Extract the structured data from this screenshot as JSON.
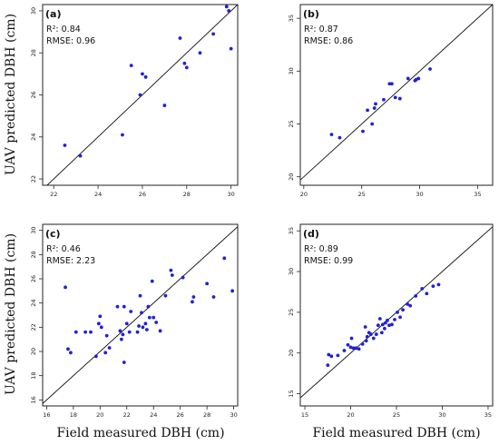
{
  "chart_data": [
    {
      "type": "scatter",
      "panel_label": "(a)",
      "stats": [
        "R²: 0.84",
        "RMSE: 0.96"
      ],
      "xlabel": "",
      "ylabel": "UAV predicted DBH (cm)",
      "xlim": [
        21.5,
        30.3
      ],
      "ylim": [
        21.7,
        30.3
      ],
      "xticks": [
        22,
        24,
        26,
        28,
        30
      ],
      "yticks": [
        22,
        24,
        26,
        28,
        30
      ],
      "grid": false,
      "reference_line": "1:1",
      "points": [
        [
          22.5,
          23.6
        ],
        [
          23.2,
          23.1
        ],
        [
          25.1,
          24.1
        ],
        [
          25.5,
          27.4
        ],
        [
          25.9,
          26.0
        ],
        [
          26.0,
          27.0
        ],
        [
          26.15,
          26.85
        ],
        [
          27.0,
          25.5
        ],
        [
          27.7,
          28.7
        ],
        [
          27.9,
          27.5
        ],
        [
          28.0,
          27.3
        ],
        [
          28.6,
          28.0
        ],
        [
          29.2,
          28.9
        ],
        [
          29.8,
          30.2
        ],
        [
          29.9,
          30.0
        ],
        [
          30.0,
          28.2
        ]
      ]
    },
    {
      "type": "scatter",
      "panel_label": "(b)",
      "stats": [
        "R²: 0.87",
        "RMSE: 0.86"
      ],
      "xlabel": "",
      "ylabel": "",
      "xlim": [
        19.7,
        36.3
      ],
      "ylim": [
        19.2,
        36.3
      ],
      "xticks": [
        20,
        25,
        30,
        35
      ],
      "yticks": [
        20,
        25,
        30,
        35
      ],
      "grid": false,
      "reference_line": "1:1",
      "points": [
        [
          22.4,
          24.0
        ],
        [
          23.1,
          23.7
        ],
        [
          25.1,
          24.3
        ],
        [
          25.5,
          26.3
        ],
        [
          25.9,
          25.0
        ],
        [
          26.1,
          26.5
        ],
        [
          26.2,
          26.9
        ],
        [
          26.9,
          27.3
        ],
        [
          27.4,
          28.8
        ],
        [
          27.6,
          28.8
        ],
        [
          27.9,
          27.5
        ],
        [
          28.3,
          27.4
        ],
        [
          29.0,
          29.3
        ],
        [
          29.6,
          29.1
        ],
        [
          29.7,
          29.2
        ],
        [
          29.9,
          29.3
        ],
        [
          30.9,
          30.2
        ]
      ]
    },
    {
      "type": "scatter",
      "panel_label": "(c)",
      "stats": [
        "R²: 0.46",
        "RMSE: 2.23"
      ],
      "xlabel": "Field measured DBH (cm)",
      "ylabel": "UAV predicted DBH (cm)",
      "xlim": [
        15.7,
        30.3
      ],
      "ylim": [
        15.5,
        30.5
      ],
      "xticks": [
        16,
        18,
        20,
        22,
        24,
        26,
        28,
        30
      ],
      "yticks": [
        16,
        18,
        20,
        22,
        24,
        26,
        28,
        30
      ],
      "grid": false,
      "reference_line": "1:1",
      "points": [
        [
          17.4,
          25.3
        ],
        [
          17.6,
          20.2
        ],
        [
          17.8,
          19.9
        ],
        [
          18.2,
          21.6
        ],
        [
          18.9,
          21.6
        ],
        [
          19.3,
          21.6
        ],
        [
          19.7,
          19.6
        ],
        [
          19.9,
          22.3
        ],
        [
          20.0,
          22.9
        ],
        [
          20.1,
          22.0
        ],
        [
          20.4,
          19.9
        ],
        [
          20.5,
          21.3
        ],
        [
          20.7,
          20.3
        ],
        [
          21.3,
          23.7
        ],
        [
          21.5,
          21.7
        ],
        [
          21.6,
          21.0
        ],
        [
          21.7,
          21.4
        ],
        [
          21.8,
          19.1
        ],
        [
          21.8,
          23.7
        ],
        [
          22.0,
          22.3
        ],
        [
          22.2,
          21.6
        ],
        [
          22.3,
          23.3
        ],
        [
          22.8,
          21.6
        ],
        [
          22.9,
          22.1
        ],
        [
          23.0,
          24.6
        ],
        [
          23.1,
          23.2
        ],
        [
          23.2,
          22.0
        ],
        [
          23.4,
          22.3
        ],
        [
          23.5,
          21.8
        ],
        [
          23.6,
          23.7
        ],
        [
          23.7,
          22.8
        ],
        [
          23.9,
          25.8
        ],
        [
          24.0,
          22.8
        ],
        [
          24.2,
          22.4
        ],
        [
          24.5,
          21.7
        ],
        [
          24.9,
          24.6
        ],
        [
          25.3,
          26.7
        ],
        [
          25.4,
          26.3
        ],
        [
          26.2,
          26.1
        ],
        [
          26.9,
          24.1
        ],
        [
          27.0,
          24.5
        ],
        [
          28.0,
          25.6
        ],
        [
          28.5,
          24.5
        ],
        [
          29.3,
          27.7
        ],
        [
          29.9,
          25.0
        ]
      ]
    },
    {
      "type": "scatter",
      "panel_label": "(d)",
      "stats": [
        "R²: 0.89",
        "RMSE: 0.99"
      ],
      "xlabel": "Field measured DBH (cm)",
      "ylabel": "",
      "xlim": [
        14.5,
        35.5
      ],
      "ylim": [
        13.5,
        35.8
      ],
      "xticks": [
        15,
        20,
        25,
        30,
        35
      ],
      "yticks": [
        15,
        20,
        25,
        30,
        35
      ],
      "grid": false,
      "reference_line": "1:1",
      "points": [
        [
          17.5,
          18.5
        ],
        [
          17.6,
          19.8
        ],
        [
          17.9,
          19.6
        ],
        [
          18.6,
          19.7
        ],
        [
          19.3,
          20.3
        ],
        [
          19.7,
          21.0
        ],
        [
          20.0,
          20.7
        ],
        [
          20.1,
          21.8
        ],
        [
          20.3,
          20.6
        ],
        [
          20.6,
          20.6
        ],
        [
          20.9,
          20.5
        ],
        [
          21.3,
          21.1
        ],
        [
          21.6,
          23.2
        ],
        [
          21.7,
          21.5
        ],
        [
          21.8,
          22.0
        ],
        [
          22.0,
          22.5
        ],
        [
          22.2,
          22.3
        ],
        [
          22.5,
          21.8
        ],
        [
          22.8,
          22.3
        ],
        [
          23.0,
          23.4
        ],
        [
          23.2,
          24.2
        ],
        [
          23.4,
          22.5
        ],
        [
          23.5,
          23.5
        ],
        [
          23.7,
          23.0
        ],
        [
          23.8,
          23.7
        ],
        [
          24.0,
          24.0
        ],
        [
          24.2,
          23.4
        ],
        [
          24.5,
          23.5
        ],
        [
          24.8,
          24.1
        ],
        [
          25.1,
          25.0
        ],
        [
          25.4,
          24.4
        ],
        [
          25.7,
          25.3
        ],
        [
          26.2,
          26.0
        ],
        [
          26.5,
          25.8
        ],
        [
          27.1,
          27.0
        ],
        [
          27.8,
          27.9
        ],
        [
          28.3,
          27.3
        ],
        [
          29.0,
          28.2
        ],
        [
          29.6,
          28.4
        ]
      ]
    }
  ]
}
